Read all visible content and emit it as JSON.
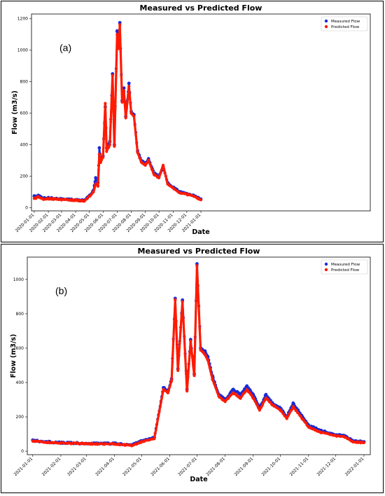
{
  "colors": {
    "measured": "#1a2bd6",
    "predicted": "#ff1a00",
    "frame": "#000000"
  },
  "chart_data": [
    {
      "type": "scatter",
      "panel_label": "(a)",
      "title": "Measured vs Predicted Flow",
      "xlabel": "Date",
      "ylabel": "Flow (m3/s)",
      "ylim": [
        -20,
        1230
      ],
      "xlim": [
        "2019-12-26",
        "2022-01-08"
      ],
      "yticks": [
        0,
        200,
        400,
        600,
        800,
        1000,
        1200
      ],
      "xticks": [
        "2020-01-01",
        "2020-02-01",
        "2020-03-01",
        "2020-04-01",
        "2020-05-01",
        "2020-06-01",
        "2020-07-01",
        "2020-08-01",
        "2020-09-01",
        "2020-10-01",
        "2020-11-01",
        "2020-12-01",
        "2021-01-01"
      ],
      "legend": {
        "position": "top-right",
        "entries": [
          "Measured Flow",
          "Predicted Flow"
        ]
      },
      "series": [
        {
          "name": "Measured Flow",
          "x": [
            "2020-01-01",
            "2020-01-05",
            "2020-01-10",
            "2020-01-20",
            "2020-02-01",
            "2020-03-01",
            "2020-04-01",
            "2020-04-20",
            "2020-05-01",
            "2020-05-10",
            "2020-05-15",
            "2020-05-20",
            "2020-05-23",
            "2020-05-26",
            "2020-05-31",
            "2020-06-05",
            "2020-06-08",
            "2020-06-15",
            "2020-06-21",
            "2020-06-25",
            "2020-07-01",
            "2020-07-04",
            "2020-07-07",
            "2020-07-12",
            "2020-07-16",
            "2020-07-20",
            "2020-07-27",
            "2020-08-01",
            "2020-08-07",
            "2020-08-15",
            "2020-08-23",
            "2020-09-01",
            "2020-09-08",
            "2020-09-20",
            "2020-10-01",
            "2020-10-10",
            "2020-10-20",
            "2020-11-01",
            "2020-11-15",
            "2020-12-01",
            "2020-12-15",
            "2021-01-01"
          ],
          "y": [
            75,
            70,
            78,
            60,
            62,
            55,
            50,
            45,
            75,
            110,
            190,
            160,
            380,
            300,
            330,
            640,
            380,
            420,
            850,
            400,
            1120,
            1040,
            1175,
            680,
            760,
            580,
            790,
            610,
            590,
            360,
            300,
            280,
            310,
            220,
            200,
            260,
            160,
            130,
            100,
            90,
            80,
            55
          ]
        },
        {
          "name": "Predicted Flow",
          "x": [
            "2020-01-01",
            "2020-01-05",
            "2020-01-10",
            "2020-01-20",
            "2020-02-01",
            "2020-03-01",
            "2020-04-01",
            "2020-04-20",
            "2020-05-01",
            "2020-05-10",
            "2020-05-15",
            "2020-05-20",
            "2020-05-23",
            "2020-05-26",
            "2020-05-31",
            "2020-06-05",
            "2020-06-08",
            "2020-06-15",
            "2020-06-21",
            "2020-06-25",
            "2020-07-01",
            "2020-07-04",
            "2020-07-07",
            "2020-07-12",
            "2020-07-16",
            "2020-07-20",
            "2020-07-27",
            "2020-08-01",
            "2020-08-07",
            "2020-08-15",
            "2020-08-23",
            "2020-09-01",
            "2020-09-08",
            "2020-09-20",
            "2020-10-01",
            "2020-10-10",
            "2020-10-20",
            "2020-11-01",
            "2020-11-15",
            "2020-12-01",
            "2020-12-15",
            "2021-01-01"
          ],
          "y": [
            60,
            62,
            70,
            55,
            58,
            52,
            48,
            44,
            72,
            100,
            150,
            140,
            340,
            290,
            320,
            660,
            360,
            400,
            840,
            390,
            1100,
            1010,
            1160,
            670,
            740,
            570,
            770,
            600,
            580,
            350,
            290,
            270,
            300,
            210,
            190,
            270,
            150,
            125,
            95,
            85,
            75,
            50
          ]
        }
      ]
    },
    {
      "type": "scatter",
      "panel_label": "(b)",
      "title": "Measured vs Predicted Flow",
      "xlabel": "Date",
      "ylabel": "Flow (m3/s)",
      "ylim": [
        -20,
        1130
      ],
      "xlim": [
        "2020-12-26",
        "2022-01-08"
      ],
      "yticks": [
        0,
        200,
        400,
        600,
        800,
        1000
      ],
      "xticks": [
        "2021-01-01",
        "2021-02-01",
        "2021-03-01",
        "2021-04-01",
        "2021-05-01",
        "2021-06-01",
        "2021-07-01",
        "2021-08-01",
        "2021-09-01",
        "2021-10-01",
        "2021-11-01",
        "2021-12-01",
        "2022-01-01"
      ],
      "legend": {
        "position": "top-right",
        "entries": [
          "Measured Flow",
          "Predicted Flow"
        ]
      },
      "series": [
        {
          "name": "Measured Flow",
          "x": [
            "2021-01-01",
            "2021-01-05",
            "2021-01-15",
            "2021-02-01",
            "2021-03-01",
            "2021-04-01",
            "2021-04-20",
            "2021-05-01",
            "2021-05-15",
            "2021-05-25",
            "2021-05-30",
            "2021-06-03",
            "2021-06-07",
            "2021-06-10",
            "2021-06-15",
            "2021-06-20",
            "2021-06-24",
            "2021-06-28",
            "2021-07-01",
            "2021-07-05",
            "2021-07-10",
            "2021-07-13",
            "2021-07-18",
            "2021-07-25",
            "2021-08-01",
            "2021-08-10",
            "2021-08-18",
            "2021-08-25",
            "2021-09-01",
            "2021-09-08",
            "2021-09-15",
            "2021-09-22",
            "2021-10-01",
            "2021-10-08",
            "2021-10-15",
            "2021-11-01",
            "2021-11-15",
            "2021-12-01",
            "2021-12-10",
            "2021-12-20",
            "2022-01-01"
          ],
          "y": [
            65,
            60,
            55,
            50,
            45,
            45,
            35,
            60,
            80,
            370,
            350,
            420,
            890,
            480,
            880,
            360,
            650,
            450,
            1090,
            600,
            580,
            550,
            440,
            330,
            300,
            360,
            330,
            380,
            330,
            250,
            330,
            280,
            250,
            200,
            280,
            150,
            120,
            95,
            90,
            60,
            55
          ]
        },
        {
          "name": "Predicted Flow",
          "x": [
            "2021-01-01",
            "2021-01-05",
            "2021-01-15",
            "2021-02-01",
            "2021-03-01",
            "2021-04-01",
            "2021-04-20",
            "2021-05-01",
            "2021-05-15",
            "2021-05-25",
            "2021-05-30",
            "2021-06-03",
            "2021-06-07",
            "2021-06-10",
            "2021-06-15",
            "2021-06-20",
            "2021-06-24",
            "2021-06-28",
            "2021-07-01",
            "2021-07-05",
            "2021-07-10",
            "2021-07-13",
            "2021-07-18",
            "2021-07-25",
            "2021-08-01",
            "2021-08-10",
            "2021-08-18",
            "2021-08-25",
            "2021-09-01",
            "2021-09-08",
            "2021-09-15",
            "2021-09-22",
            "2021-10-01",
            "2021-10-08",
            "2021-10-15",
            "2021-11-01",
            "2021-11-15",
            "2021-12-01",
            "2021-12-10",
            "2021-12-20",
            "2022-01-01"
          ],
          "y": [
            60,
            58,
            52,
            48,
            44,
            42,
            33,
            55,
            75,
            360,
            340,
            410,
            880,
            470,
            870,
            350,
            640,
            440,
            1080,
            590,
            560,
            530,
            420,
            320,
            290,
            340,
            310,
            360,
            310,
            240,
            310,
            270,
            240,
            190,
            260,
            140,
            110,
            90,
            85,
            55,
            50
          ]
        }
      ]
    }
  ]
}
